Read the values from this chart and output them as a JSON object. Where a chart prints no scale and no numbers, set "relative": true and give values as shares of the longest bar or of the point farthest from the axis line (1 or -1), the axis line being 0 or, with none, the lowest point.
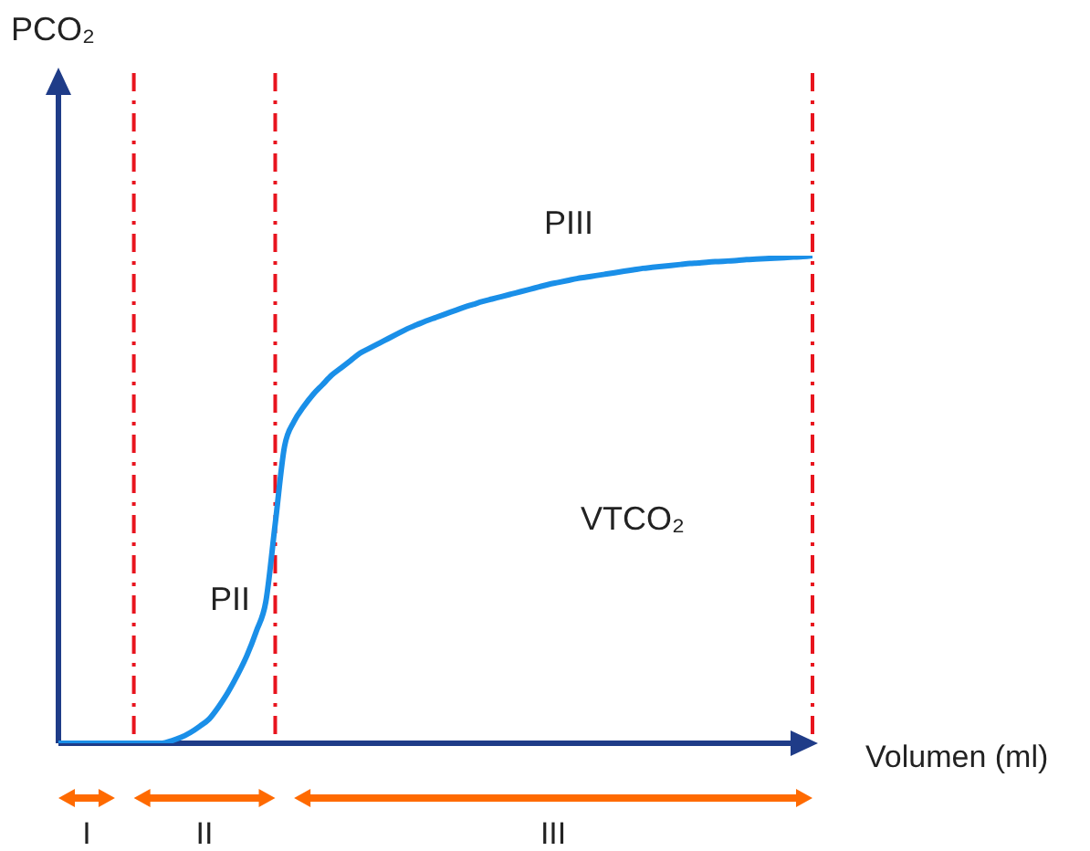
{
  "chart_data": {
    "type": "line",
    "relative": true,
    "grid": "x",
    "xlabel": "Volumen (ml)",
    "categories": [
      null,
      null,
      null,
      null,
      null,
      null,
      null,
      null,
      null,
      null,
      null,
      null,
      null,
      null,
      null,
      null,
      null,
      null,
      null,
      null,
      null,
      null,
      null,
      null,
      null,
      null,
      null,
      null,
      null,
      null,
      null,
      null,
      null,
      null,
      null,
      null,
      null,
      null,
      null,
      null,
      null,
      null,
      null,
      null,
      null,
      null,
      null,
      null,
      null,
      null,
      null,
      null,
      null,
      null,
      null,
      null,
      null,
      null,
      null,
      null,
      null,
      null,
      null,
      null,
      null,
      null,
      null,
      null,
      null,
      null,
      null,
      null,
      null,
      null,
      null,
      null,
      null,
      null,
      null,
      null,
      null
    ],
    "series": [
      {
        "color": "#1a8fe8",
        "values": [
          0,
          0,
          0,
          0,
          0,
          0,
          0,
          0,
          0,
          0,
          0,
          0,
          0.005,
          0.012,
          0.022,
          0.035,
          0.05,
          0.075,
          0.105,
          0.14,
          0.18,
          0.23,
          0.29,
          0.45,
          0.61,
          0.66,
          0.69,
          0.715,
          0.735,
          0.755,
          0.77,
          0.785,
          0.8,
          0.81,
          0.82,
          0.83,
          0.84,
          0.85,
          0.858,
          0.866,
          0.873,
          0.88,
          0.887,
          0.894,
          0.9,
          0.906,
          0.911,
          0.916,
          0.921,
          0.926,
          0.931,
          0.936,
          0.941,
          0.945,
          0.949,
          0.953,
          0.956,
          0.959,
          0.962,
          0.965,
          0.968,
          0.971,
          0.974,
          0.976,
          0.978,
          0.98,
          0.982,
          0.984,
          0.985,
          0.987,
          0.988,
          0.989,
          0.99,
          0.992,
          0.993,
          0.994,
          0.995,
          0.996,
          0.997,
          0.998,
          1
        ]
      }
    ],
    "annotations": [
      "PCO₂",
      "PIII",
      "VTCO₂",
      "PII",
      "I",
      "II",
      "III"
    ]
  }
}
